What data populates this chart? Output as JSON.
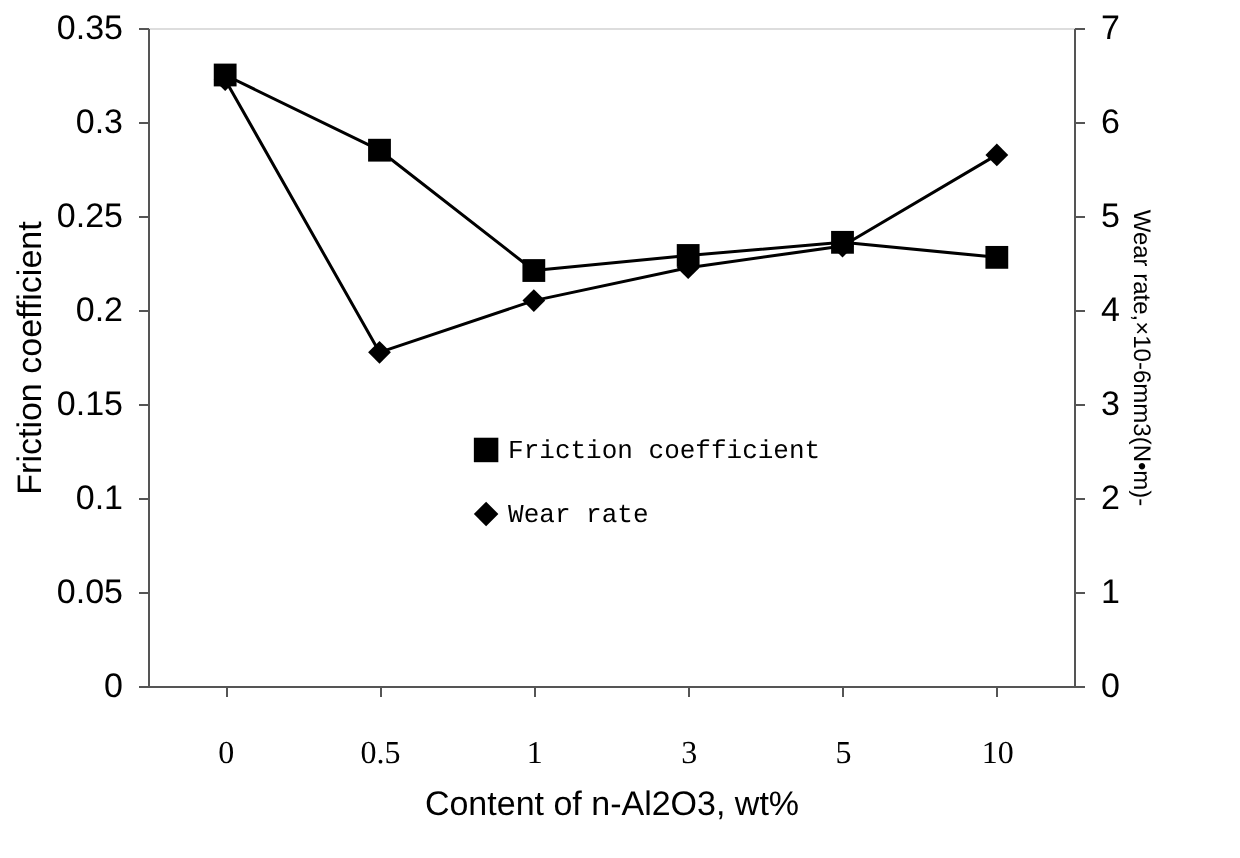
{
  "chart_data": {
    "type": "line",
    "xlabel": "Content of n-Al2O3, wt%",
    "ylabel": "Friction coefficient",
    "y2label": "Wear rate,×10-6mm3(N•m)-",
    "categories": [
      "0",
      "0.5",
      "1",
      "3",
      "5",
      "10"
    ],
    "series": [
      {
        "name": "Friction coefficient",
        "color": "#000000",
        "marker": "square",
        "values": [
          0.325,
          0.285,
          0.221,
          0.229,
          0.236,
          0.228
        ]
      },
      {
        "name": "Wear rate",
        "color": "#000000",
        "marker": "diamond",
        "axis": "y2",
        "values": [
          6.45,
          3.55,
          4.1,
          4.45,
          4.68,
          5.65
        ]
      }
    ],
    "ylim": [
      0,
      0.35
    ],
    "yticks": [
      0,
      0.05,
      0.1,
      0.15,
      0.2,
      0.25,
      0.3,
      0.35
    ],
    "y2lim": [
      0,
      7
    ],
    "y2ticks": [
      0,
      1,
      2,
      3,
      4,
      5,
      6,
      7
    ],
    "grid": false,
    "legend": "bottom",
    "line_style": "solid"
  }
}
